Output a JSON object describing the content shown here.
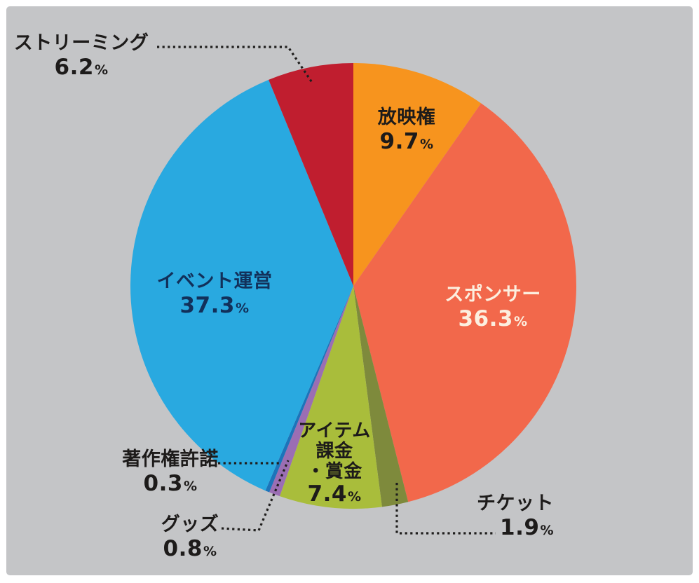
{
  "chart_data": {
    "type": "pie",
    "title": "",
    "unit": "%",
    "direction": "clockwise",
    "start_angle_deg": 0,
    "background_color": "#C4C5C7",
    "frame_color": "#FFFFFF",
    "slices": [
      {
        "key": "broadcast-rights",
        "label": "放映権",
        "value": 9.7,
        "color": "#F7941E",
        "label_placement": "inside",
        "label_color": "#1D1B1A"
      },
      {
        "key": "sponsor",
        "label": "スポンサー",
        "value": 36.3,
        "color": "#F2684B",
        "label_placement": "inside",
        "label_color": "#FCEFDF"
      },
      {
        "key": "ticket",
        "label": "チケット",
        "value": 1.9,
        "color": "#7E8A3C",
        "label_placement": "outside",
        "label_color": "#1D1B1A"
      },
      {
        "key": "item-prize",
        "label": "アイテム課金・賞金",
        "value": 7.4,
        "color": "#A9BD3B",
        "label_placement": "inside",
        "label_color": "#1D1B1A",
        "lines": [
          "アイテム",
          "課金",
          "・賞金"
        ]
      },
      {
        "key": "goods",
        "label": "グッズ",
        "value": 0.8,
        "color": "#9B6EB3",
        "label_placement": "outside",
        "label_color": "#1D1B1A"
      },
      {
        "key": "copyright-license",
        "label": "著作権許諾",
        "value": 0.3,
        "color": "#1C74BA",
        "label_placement": "outside",
        "label_color": "#1D1B1A"
      },
      {
        "key": "event-operation",
        "label": "イベント運営",
        "value": 37.3,
        "color": "#29A9E0",
        "label_placement": "inside",
        "label_color": "#12305A"
      },
      {
        "key": "streaming",
        "label": "ストリーミング",
        "value": 6.2,
        "color": "#C01E2F",
        "label_placement": "outside",
        "label_color": "#1D1B1A"
      }
    ]
  }
}
